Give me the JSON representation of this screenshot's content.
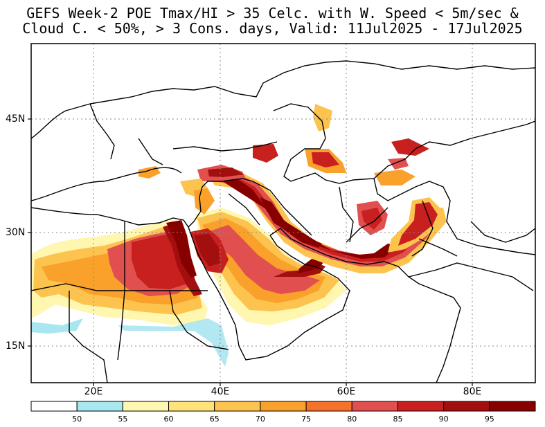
{
  "title": {
    "line1": "GEFS Week-2 POE Tmax/HI > 35 Celc. with W. Speed < 5m/sec &",
    "line2": "Cloud C. < 50%, > 3 Cons. days, Valid: 11Jul2025 - 17Jul2025"
  },
  "axes": {
    "lat_labels": [
      "45N",
      "30N",
      "15N"
    ],
    "lon_labels": [
      "20E",
      "40E",
      "60E",
      "80E"
    ]
  },
  "colorbar": {
    "levels": [
      "50",
      "55",
      "60",
      "65",
      "70",
      "75",
      "80",
      "85",
      "90",
      "95"
    ],
    "colors": [
      "#ffffff",
      "#a8e6f0",
      "#fff6b0",
      "#ffe27a",
      "#fcc44e",
      "#f9a12b",
      "#f4722b",
      "#e14f4f",
      "#c81f1f",
      "#a30f0f",
      "#870000"
    ]
  }
}
